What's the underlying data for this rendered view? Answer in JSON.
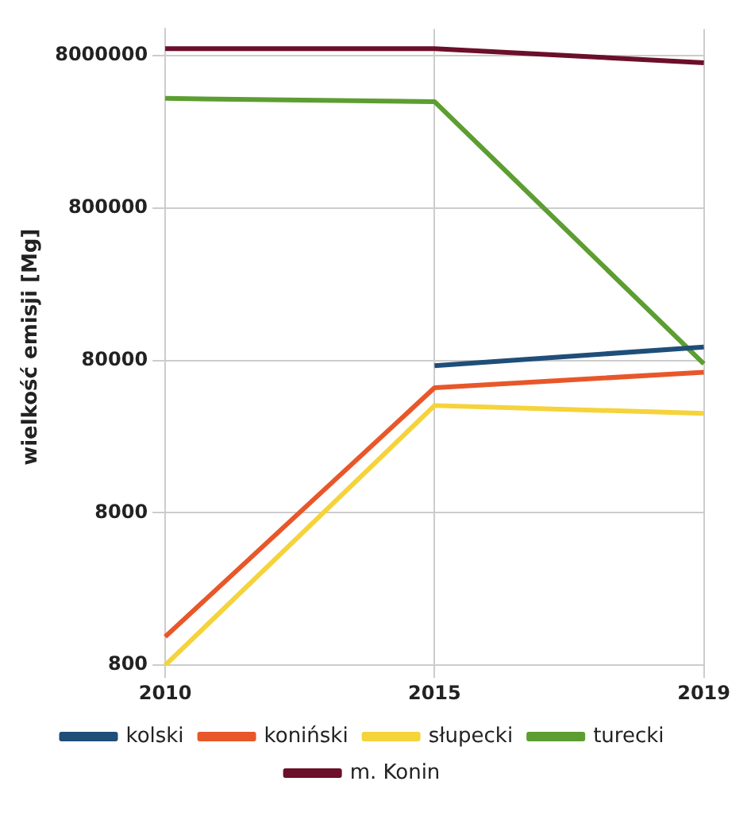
{
  "chart_data": {
    "type": "line",
    "ylabel": "wielkość emisji [Mg]",
    "categories": [
      "2010",
      "2015",
      "2019"
    ],
    "series": [
      {
        "name": "kolski",
        "color": "#1f4e79",
        "values": [
          null,
          74000,
          98000
        ]
      },
      {
        "name": "koniński",
        "color": "#e8572a",
        "values": [
          1230,
          53000,
          67000
        ]
      },
      {
        "name": "słupecki",
        "color": "#f5d33a",
        "values": [
          800,
          40500,
          36000
        ]
      },
      {
        "name": "turecki",
        "color": "#5c9e31",
        "values": [
          4200000,
          4000000,
          76000
        ]
      },
      {
        "name": "m. Konin",
        "color": "#6b0f2b",
        "values": [
          8900000,
          8900000,
          7200000
        ]
      }
    ],
    "log": "y",
    "ylim": [
      800,
      12000000
    ],
    "yticks": [
      800,
      8000,
      80000,
      800000,
      8000000
    ],
    "grid": true,
    "legend": "bottom",
    "marker": "none",
    "line_style": "solid"
  }
}
